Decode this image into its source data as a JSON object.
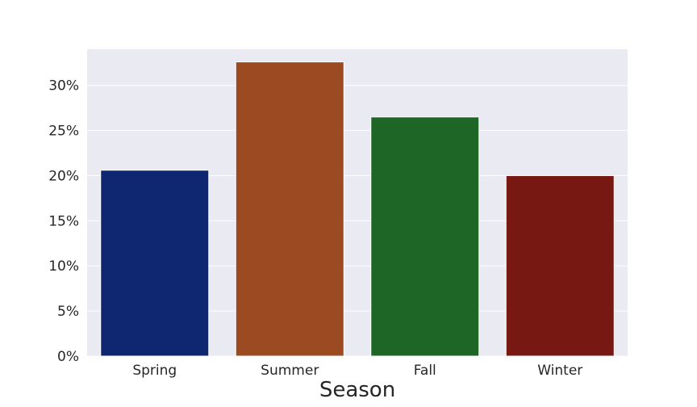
{
  "chart_data": {
    "type": "bar",
    "title": "",
    "xlabel": "Season",
    "ylabel": "",
    "categories": [
      "Spring",
      "Summer",
      "Fall",
      "Winter"
    ],
    "values": [
      20.6,
      32.6,
      26.5,
      20.0
    ],
    "colors": [
      "#0f2770",
      "#9b4a22",
      "#1e6626",
      "#771813"
    ],
    "ylim": [
      0,
      34
    ],
    "yticks": [
      0,
      5,
      10,
      15,
      20,
      25,
      30
    ],
    "ytick_labels": [
      "0%",
      "5%",
      "10%",
      "15%",
      "20%",
      "25%",
      "30%"
    ],
    "grid": true,
    "background": "#eaeaf2"
  }
}
